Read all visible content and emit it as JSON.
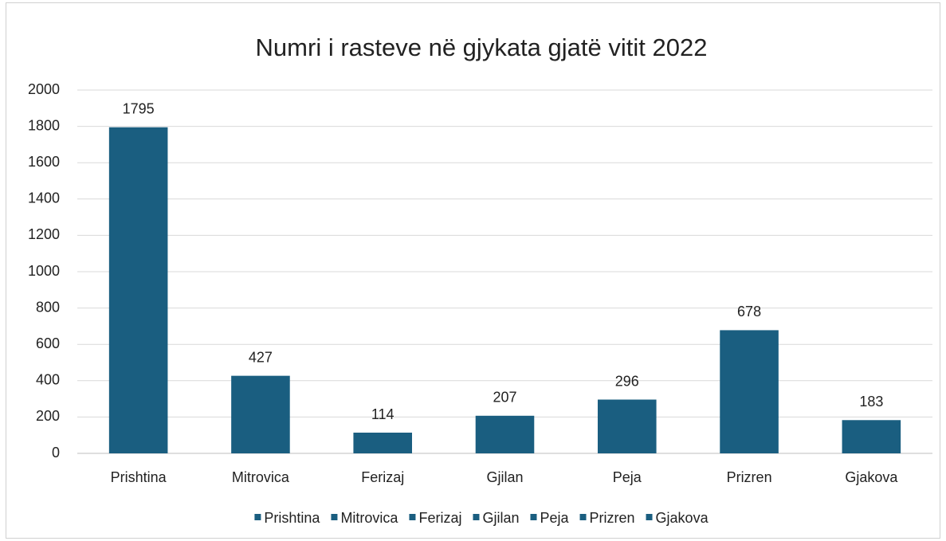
{
  "chart_data": {
    "type": "bar",
    "title": "Numri i rasteve në gjykata gjatë vitit 2022",
    "categories": [
      "Prishtina",
      "Mitrovica",
      "Ferizaj",
      "Gjilan",
      "Peja",
      "Prizren",
      "Gjakova"
    ],
    "values": [
      1795,
      427,
      114,
      207,
      296,
      678,
      183
    ],
    "color": "#1a5e80",
    "ylim": [
      0,
      2000
    ],
    "yticks": [
      0,
      200,
      400,
      600,
      800,
      1000,
      1200,
      1400,
      1600,
      1800,
      2000
    ],
    "grid": true,
    "legend": "bottom"
  }
}
